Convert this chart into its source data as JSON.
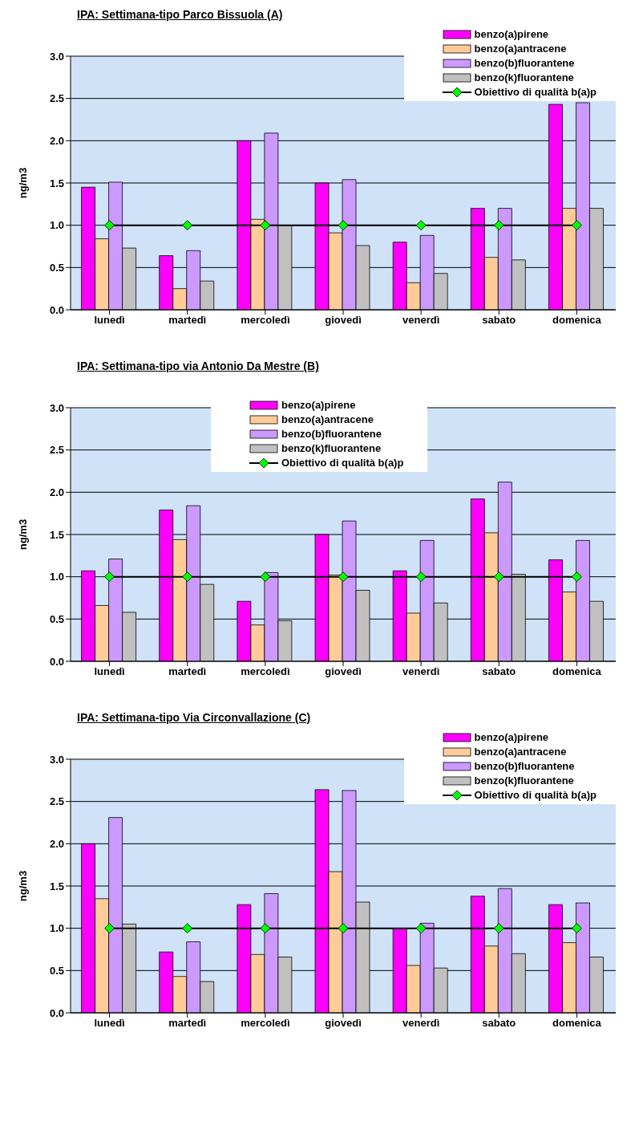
{
  "chart_data": [
    {
      "type": "bar",
      "title": "IPA: Settimana-tipo Parco Bissuola (A)",
      "ylabel": "ng/m3",
      "categories": [
        "lunedì",
        "martedì",
        "mercoledì",
        "giovedì",
        "venerdì",
        "sabato",
        "domenica"
      ],
      "ylim": [
        0,
        3
      ],
      "yticks": [
        {
          "value": 0,
          "label": "0.0"
        },
        {
          "value": 0.5,
          "label": "0.5"
        },
        {
          "value": 1,
          "label": "1.0"
        },
        {
          "value": 1.5,
          "label": "1.5"
        },
        {
          "value": 2,
          "label": "2.0"
        },
        {
          "value": 2.5,
          "label": "2.5"
        },
        {
          "value": 3,
          "label": "3.0"
        }
      ],
      "grid": "y",
      "legend": "top right",
      "series": [
        {
          "name": "benzo(a)pirene",
          "color": "#ff00ff",
          "values": [
            1.45,
            0.64,
            2.0,
            1.5,
            0.8,
            1.2,
            2.43
          ]
        },
        {
          "name": "benzo(a)antracene",
          "color": "#ffcc99",
          "values": [
            0.84,
            0.25,
            1.07,
            0.91,
            0.32,
            0.62,
            1.2
          ]
        },
        {
          "name": "benzo(b)fluorantene",
          "color": "#cc99ff",
          "values": [
            1.51,
            0.7,
            2.09,
            1.54,
            0.88,
            1.2,
            2.45
          ]
        },
        {
          "name": "benzo(k)fluorantene",
          "color": "#c0c0c0",
          "values": [
            0.73,
            0.34,
            1.0,
            0.76,
            0.43,
            0.59,
            1.2
          ]
        },
        {
          "name": "Obiettivo di qualità b(a)p",
          "type": "line",
          "color": "#000000",
          "colors": [
            "#00ff00",
            "#00ff00",
            "#00ff00",
            "#00ff00",
            "#00ff00",
            "#00ff00",
            "#00ff00"
          ],
          "marker": "diamond",
          "values": [
            1,
            1,
            1,
            1,
            1,
            1,
            1
          ]
        }
      ]
    },
    {
      "type": "bar",
      "title": "IPA: Settimana-tipo via Antonio Da Mestre (B)",
      "ylabel": "ng/m3",
      "categories": [
        "lunedì",
        "martedì",
        "mercoledì",
        "giovedì",
        "venerdì",
        "sabato",
        "domenica"
      ],
      "ylim": [
        0,
        3
      ],
      "yticks": [
        {
          "value": 0,
          "label": "0.0"
        },
        {
          "value": 0.5,
          "label": "0.5"
        },
        {
          "value": 1,
          "label": "1.0"
        },
        {
          "value": 1.5,
          "label": "1.5"
        },
        {
          "value": 2,
          "label": "2.0"
        },
        {
          "value": 2.5,
          "label": "2.5"
        },
        {
          "value": 3,
          "label": "3.0"
        }
      ],
      "grid": "y",
      "legend": "top",
      "series": [
        {
          "name": "benzo(a)pirene",
          "color": "#ff00ff",
          "values": [
            1.07,
            1.79,
            0.71,
            1.5,
            1.07,
            1.92,
            1.2
          ]
        },
        {
          "name": "benzo(a)antracene",
          "color": "#ffcc99",
          "values": [
            0.66,
            1.44,
            0.43,
            1.02,
            0.57,
            1.52,
            0.82
          ]
        },
        {
          "name": "benzo(b)fluorantene",
          "color": "#cc99ff",
          "values": [
            1.21,
            1.84,
            1.05,
            1.66,
            1.43,
            2.12,
            1.43
          ]
        },
        {
          "name": "benzo(k)fluorantene",
          "color": "#c0c0c0",
          "values": [
            0.58,
            0.91,
            0.48,
            0.84,
            0.69,
            1.03,
            0.71
          ]
        },
        {
          "name": "Obiettivo di qualità b(a)p",
          "type": "line",
          "color": "#000000",
          "colors": [
            "#00ff00",
            "#00ff00",
            "#00ff00",
            "#00ff00",
            "#00ff00",
            "#00ff00",
            "#00ff00"
          ],
          "marker": "diamond",
          "values": [
            1,
            1,
            1,
            1,
            1,
            1,
            1
          ]
        }
      ]
    },
    {
      "type": "bar",
      "title": "IPA: Settimana-tipo Via Circonvallazione (C)",
      "ylabel": "ng/m3",
      "categories": [
        "lunedì",
        "martedì",
        "mercoledì",
        "giovedì",
        "venerdì",
        "sabato",
        "domenica"
      ],
      "ylim": [
        0,
        3
      ],
      "yticks": [
        {
          "value": 0,
          "label": "0.0"
        },
        {
          "value": 0.5,
          "label": "0.5"
        },
        {
          "value": 1,
          "label": "1.0"
        },
        {
          "value": 1.5,
          "label": "1.5"
        },
        {
          "value": 2,
          "label": "2.0"
        },
        {
          "value": 2.5,
          "label": "2.5"
        },
        {
          "value": 3,
          "label": "3.0"
        }
      ],
      "grid": "y",
      "legend": "top right",
      "series": [
        {
          "name": "benzo(a)pirene",
          "color": "#ff00ff",
          "values": [
            2.0,
            0.72,
            1.28,
            2.64,
            1.0,
            1.38,
            1.28
          ]
        },
        {
          "name": "benzo(a)antracene",
          "color": "#ffcc99",
          "values": [
            1.35,
            0.43,
            0.69,
            1.67,
            0.56,
            0.79,
            0.83
          ]
        },
        {
          "name": "benzo(b)fluorantene",
          "color": "#cc99ff",
          "values": [
            2.31,
            0.84,
            1.41,
            2.63,
            1.06,
            1.47,
            1.3
          ]
        },
        {
          "name": "benzo(k)fluorantene",
          "color": "#c0c0c0",
          "values": [
            1.05,
            0.37,
            0.66,
            1.31,
            0.53,
            0.7,
            0.66
          ]
        },
        {
          "name": "Obiettivo di qualità b(a)p",
          "type": "line",
          "color": "#000000",
          "colors": [
            "#00ff00",
            "#00ff00",
            "#00ff00",
            "#00ff00",
            "#00ff00",
            "#00ff00",
            "#00ff00"
          ],
          "marker": "diamond",
          "values": [
            1,
            1,
            1,
            1,
            1,
            1,
            1
          ]
        }
      ]
    }
  ]
}
